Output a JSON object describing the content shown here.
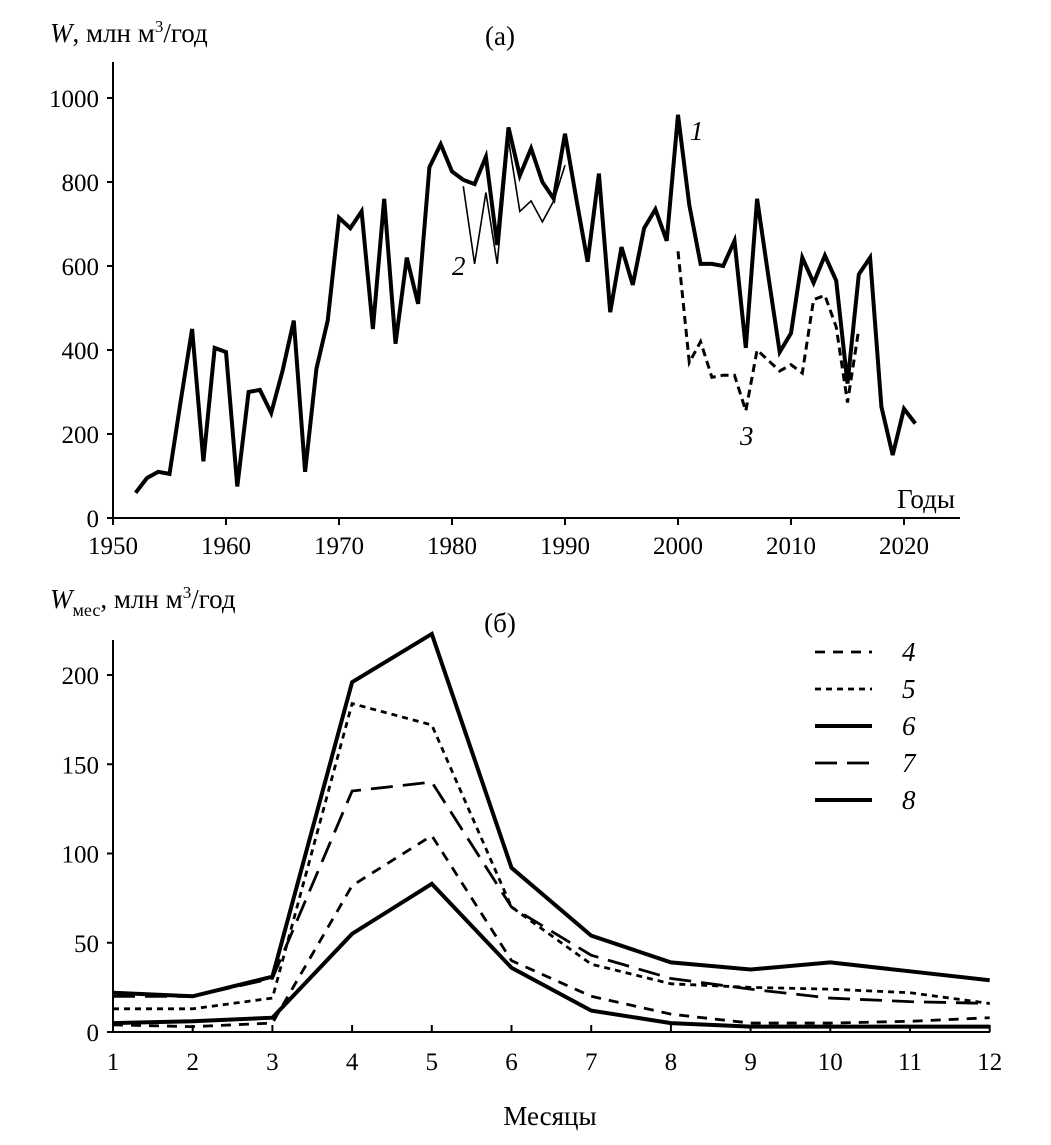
{
  "chart_data": [
    {
      "type": "line",
      "title": "(а)",
      "ylabel_main": "W",
      "ylabel_units": ", млн м",
      "ylabel_sup": "3",
      "ylabel_tail": "/год",
      "xlabel": "Годы",
      "xlim": [
        1950,
        2025
      ],
      "ylim": [
        0,
        1000
      ],
      "xticks": [
        1950,
        1960,
        1970,
        1980,
        1990,
        2000,
        2010,
        2020
      ],
      "yticks": [
        0,
        200,
        400,
        600,
        800,
        1000
      ],
      "series": [
        {
          "name": "1",
          "style": "solid-thick",
          "x": [
            1952,
            1953,
            1954,
            1955,
            1956,
            1957,
            1958,
            1959,
            1960,
            1961,
            1962,
            1963,
            1964,
            1965,
            1966,
            1967,
            1968,
            1969,
            1970,
            1971,
            1972,
            1973,
            1974,
            1975,
            1976,
            1977,
            1978,
            1979,
            1980,
            1981,
            1982,
            1983,
            1984,
            1985,
            1986,
            1987,
            1988,
            1989,
            1990,
            1991,
            1992,
            1993,
            1994,
            1995,
            1996,
            1997,
            1998,
            1999,
            2000,
            2001,
            2002,
            2003,
            2004,
            2005,
            2006,
            2007,
            2008,
            2009,
            2010,
            2011,
            2012,
            2013,
            2014,
            2015,
            2016,
            2017,
            2018,
            2019,
            2020,
            2021
          ],
          "y": [
            60,
            95,
            110,
            105,
            280,
            450,
            135,
            405,
            395,
            75,
            300,
            305,
            250,
            350,
            470,
            110,
            355,
            470,
            715,
            690,
            730,
            450,
            760,
            415,
            620,
            510,
            835,
            890,
            825,
            805,
            795,
            860,
            650,
            930,
            815,
            880,
            800,
            760,
            915,
            760,
            610,
            820,
            490,
            645,
            555,
            690,
            735,
            660,
            960,
            745,
            605,
            605,
            600,
            660,
            405,
            760,
            575,
            395,
            440,
            620,
            560,
            625,
            565,
            320,
            580,
            620,
            265,
            150,
            260,
            225
          ]
        },
        {
          "name": "2",
          "style": "solid-thin",
          "x": [
            1981,
            1982,
            1983,
            1984,
            1985,
            1986,
            1987,
            1988,
            1989,
            1990
          ],
          "y": [
            790,
            605,
            775,
            605,
            900,
            730,
            755,
            705,
            755,
            840
          ]
        },
        {
          "name": "3",
          "style": "dashed",
          "x": [
            2000,
            2001,
            2002,
            2003,
            2004,
            2005,
            2006,
            2007,
            2008,
            2009,
            2010,
            2011,
            2012,
            2013,
            2014,
            2015,
            2016
          ],
          "y": [
            635,
            370,
            420,
            335,
            340,
            340,
            255,
            400,
            375,
            350,
            365,
            345,
            520,
            530,
            455,
            275,
            450
          ]
        }
      ]
    },
    {
      "type": "line",
      "title": "(б)",
      "ylabel_main": "W",
      "ylabel_sub": "мес",
      "ylabel_units": ", млн м",
      "ylabel_sup": "3",
      "ylabel_tail": "/год",
      "xlabel": "Месяцы",
      "xlim": [
        1,
        12
      ],
      "ylim": [
        0,
        220
      ],
      "xticks": [
        1,
        2,
        3,
        4,
        5,
        6,
        7,
        8,
        9,
        10,
        11,
        12
      ],
      "yticks": [
        0,
        50,
        100,
        150,
        200
      ],
      "legend": "top-right",
      "series": [
        {
          "name": "4",
          "style": "dash-medium",
          "values": [
            4,
            3,
            5,
            82,
            110,
            40,
            20,
            10,
            5,
            5,
            6,
            8
          ]
        },
        {
          "name": "5",
          "style": "dash-short",
          "values": [
            13,
            13,
            19,
            184,
            172,
            70,
            38,
            27,
            25,
            24,
            22,
            16
          ]
        },
        {
          "name": "6",
          "style": "solid-thick",
          "values": [
            22,
            20,
            31,
            196,
            223,
            92,
            54,
            39,
            35,
            39,
            34,
            29
          ]
        },
        {
          "name": "7",
          "style": "dash-long",
          "values": [
            20,
            20,
            30,
            135,
            140,
            70,
            43,
            30,
            24,
            19,
            17,
            16
          ]
        },
        {
          "name": "8",
          "style": "solid-thick",
          "values": [
            5,
            6,
            8,
            55,
            83,
            36,
            12,
            5,
            3,
            3,
            3,
            3
          ]
        }
      ]
    }
  ]
}
